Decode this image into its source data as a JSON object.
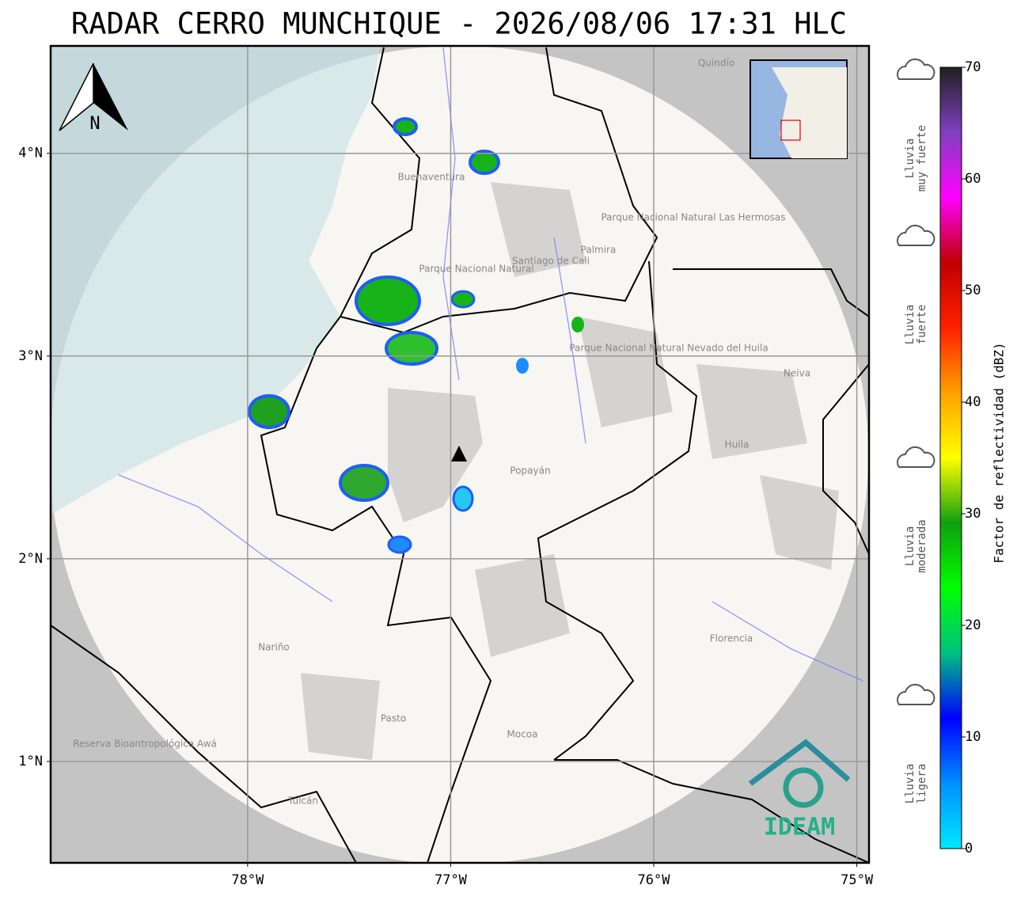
{
  "title": "RADAR CERRO MUNCHIQUE - 2026/08/06 17:31 HLC",
  "map": {
    "xlim": [
      -78.97,
      -74.94
    ],
    "ylim": [
      0.5,
      4.53
    ],
    "grid": true,
    "xticks": [
      {
        "value": -78,
        "label": "78°W"
      },
      {
        "value": -77,
        "label": "77°W"
      },
      {
        "value": -76,
        "label": "76°W"
      },
      {
        "value": -75,
        "label": "75°W"
      }
    ],
    "yticks": [
      {
        "value": 1,
        "label": "1°N"
      },
      {
        "value": 2,
        "label": "2°N"
      },
      {
        "value": 3,
        "label": "3°N"
      },
      {
        "value": 4,
        "label": "4°N"
      }
    ],
    "north": "N",
    "logo": "IDEAM",
    "places": [
      "Buenaventura",
      "Santiago de Cali",
      "Palmira",
      "Popayán",
      "Neiva",
      "Huila",
      "Nariño",
      "Pasto",
      "Mocoa",
      "Florencia",
      "Tulcán",
      "Quindío",
      "Parque Nacional Natural Las Hermosas",
      "Parque Nacional Natural",
      "Parque Nacional Natural Nevado del Huila",
      "Reserva Bioantropológica Awá"
    ]
  },
  "colorbar": {
    "label": "Factor de reflectividad (dBZ)",
    "lim": [
      0,
      70
    ],
    "ticks": [
      0,
      10,
      20,
      30,
      40,
      50,
      60,
      70
    ],
    "colors": [
      "#00e8ff",
      "#0090ff",
      "#0000ff",
      "#00c080",
      "#00ff00",
      "#10a010",
      "#ffff00",
      "#ffa000",
      "#ff2000",
      "#c00000",
      "#ff00ff",
      "#8040c0",
      "#202020"
    ]
  },
  "rain_levels": [
    [
      "Lluvia",
      "muy fuerte"
    ],
    [
      "Lluvia",
      "fuerte"
    ],
    [
      "Lluvia",
      "moderada"
    ],
    [
      "Lluvia",
      "ligera"
    ]
  ]
}
